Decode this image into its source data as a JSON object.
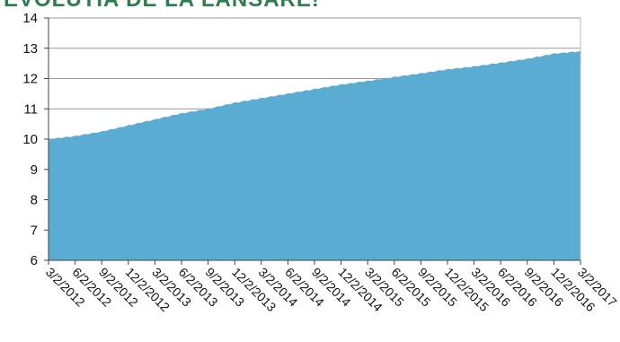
{
  "chart_data": {
    "type": "area",
    "title": "EVOLUTIA DE LA LANSARE!",
    "xlabel": "",
    "ylabel": "",
    "x_ticks": [
      "3/2/2012",
      "6/2/2012",
      "9/2/2012",
      "12/2/2012",
      "3/2/2013",
      "6/2/2013",
      "9/2/2013",
      "12/2/2013",
      "3/2/2014",
      "6/2/2014",
      "9/2/2014",
      "12/2/2014",
      "3/2/2015",
      "6/2/2015",
      "9/2/2015",
      "12/2/2015",
      "3/2/2016",
      "6/2/2016",
      "9/2/2016",
      "12/2/2016",
      "3/2/2017"
    ],
    "y_ticks": [
      6,
      7,
      8,
      9,
      10,
      11,
      12,
      13,
      14
    ],
    "ylim": [
      6,
      14
    ],
    "series": [
      {
        "x": [
          "3/2/2012",
          "6/2/2012",
          "9/2/2012",
          "12/2/2012",
          "3/2/2013",
          "6/2/2013",
          "9/2/2013",
          "12/2/2013",
          "3/2/2014",
          "6/2/2014",
          "9/2/2014",
          "12/2/2014",
          "3/2/2015",
          "6/2/2015",
          "9/2/2015",
          "12/2/2015",
          "3/2/2016",
          "6/2/2016",
          "9/2/2016",
          "12/2/2016",
          "3/2/2017"
        ],
        "values": [
          10.0,
          10.1,
          10.25,
          10.45,
          10.65,
          10.85,
          11.0,
          11.2,
          11.35,
          11.5,
          11.65,
          11.8,
          11.92,
          12.05,
          12.17,
          12.3,
          12.4,
          12.52,
          12.65,
          12.82,
          12.9
        ],
        "color": "#5aacd2"
      }
    ],
    "grid": "horizontal",
    "legend": "none",
    "colors": {
      "area": "#5aacd2",
      "grid": "#999999",
      "title": "#2e7d4f"
    }
  }
}
